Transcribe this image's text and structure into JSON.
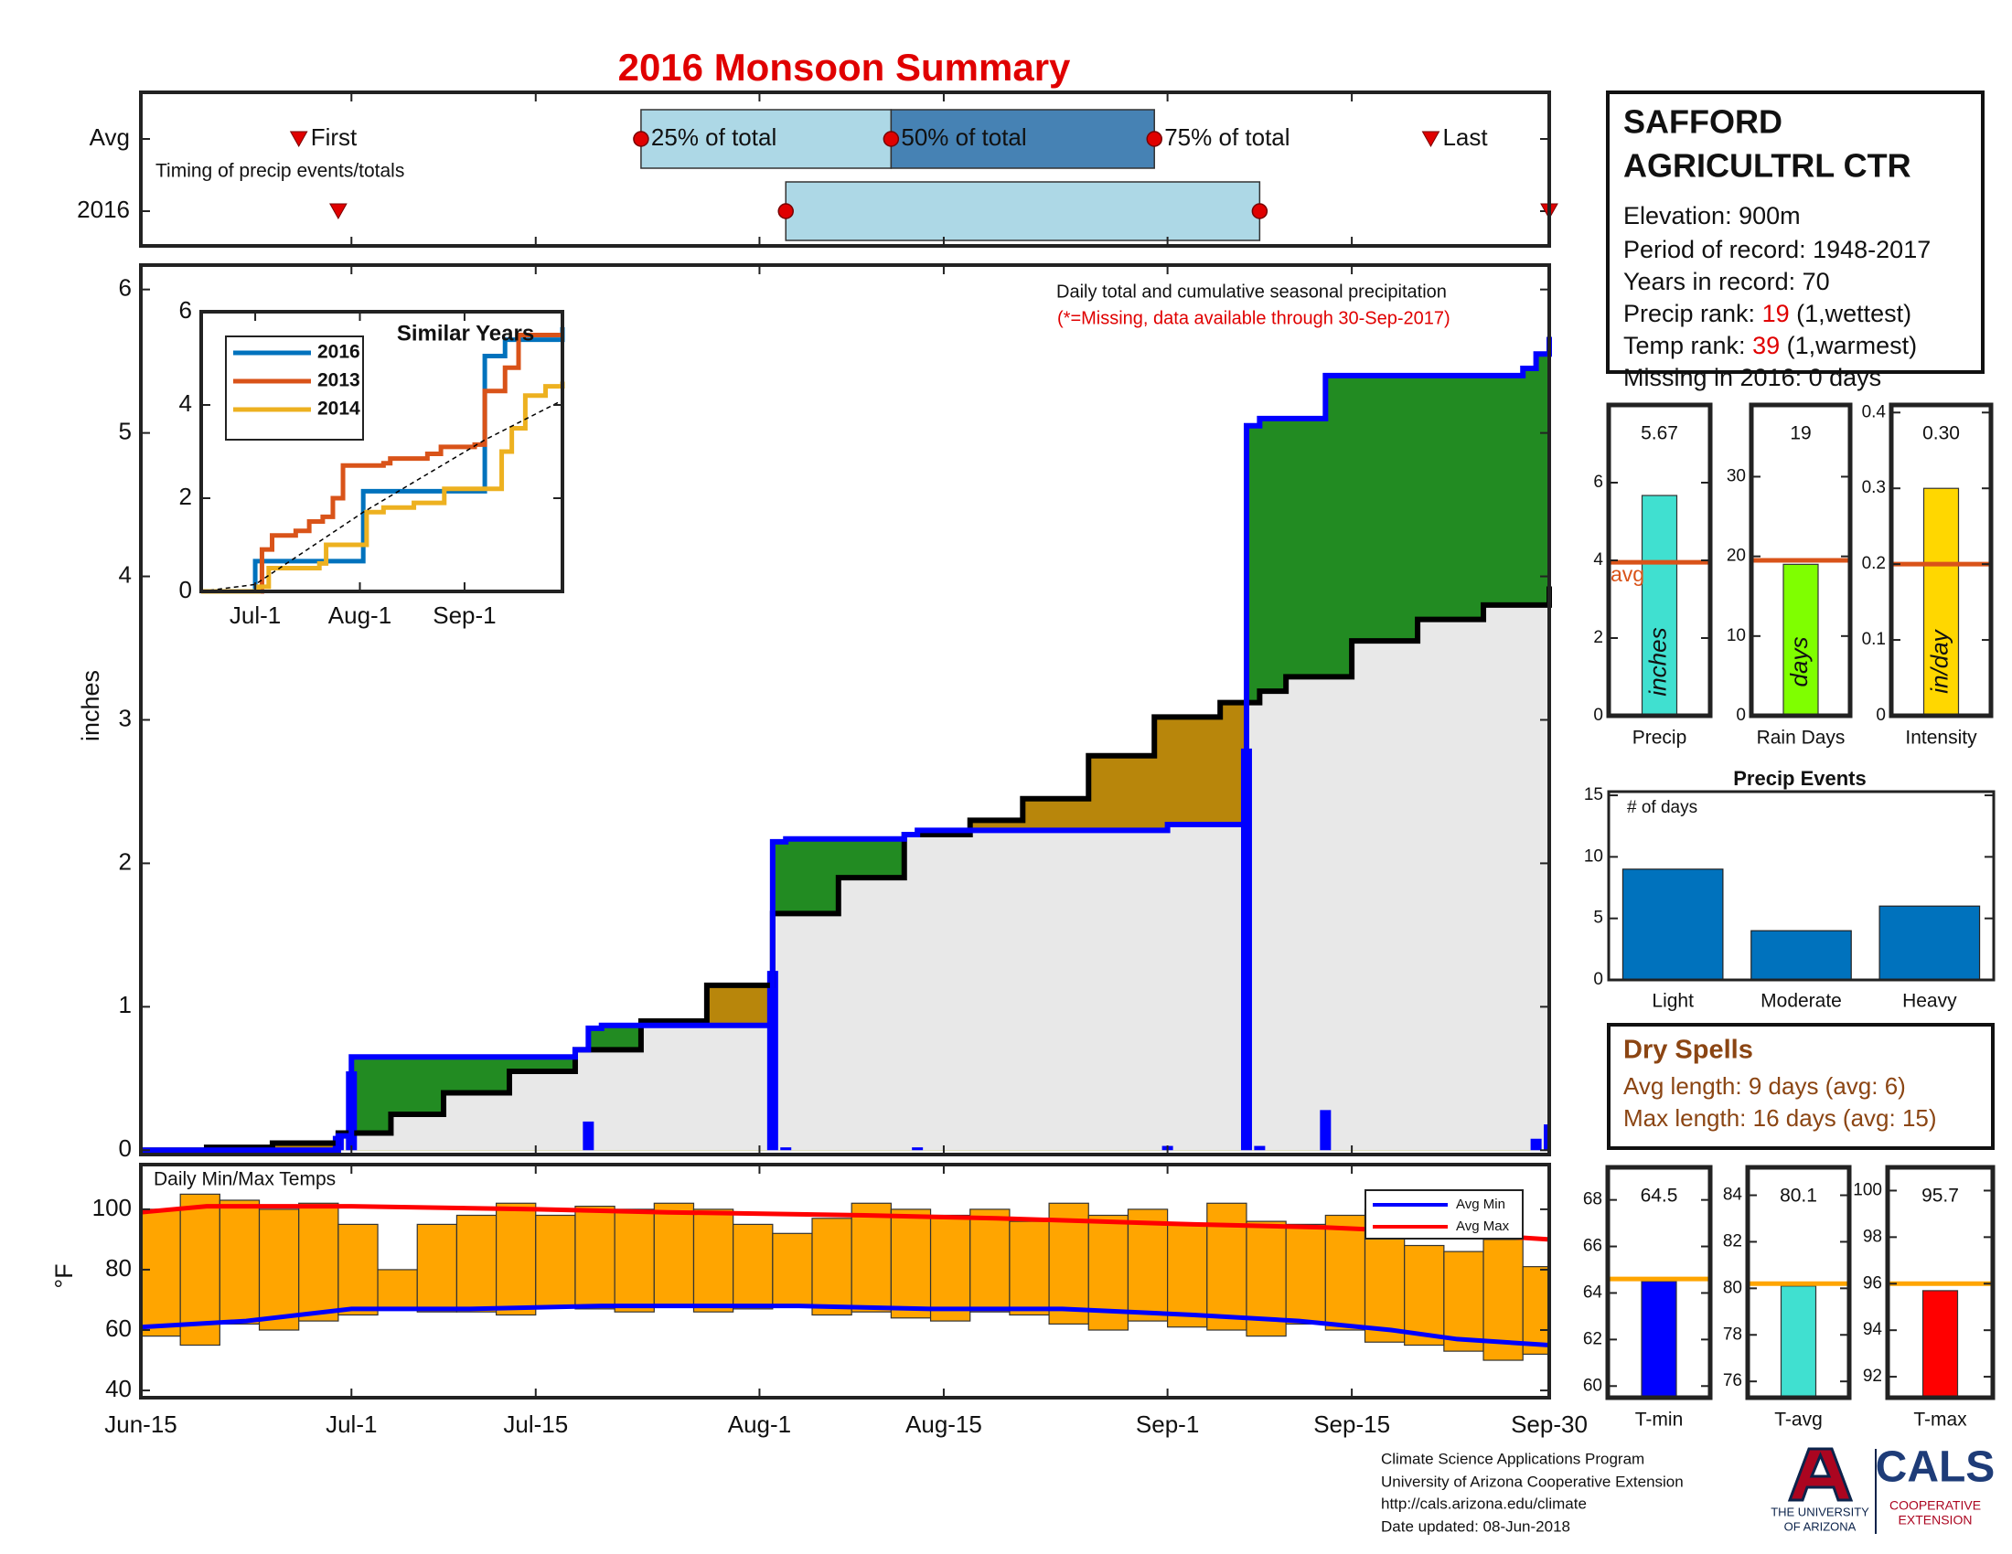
{
  "title": "2016 Monsoon Summary",
  "station": {
    "name_lines": [
      "SAFFORD",
      "AGRICULTRL CTR"
    ],
    "lines": [
      "Elevation: 900m",
      "Period of record: 1948-2017",
      "Years in record: 70"
    ],
    "precip_rank": {
      "label": "Precip rank:",
      "rank": 19,
      "note": "(1,wettest)"
    },
    "temp_rank": {
      "label": "Temp rank:",
      "rank": 39,
      "note": "(1,warmest)"
    },
    "missing": "Missing in 2016: 0 days"
  },
  "dry_spells": {
    "title": "Dry Spells",
    "lines": [
      "Avg length: 9 days (avg: 6)",
      "Max length: 16 days (avg: 15)"
    ]
  },
  "footer": {
    "lines": [
      "Climate Science Applications Program",
      "University of Arizona Cooperative Extension",
      "http://cals.arizona.edu/climate",
      " Date updated: 08-Jun-2018"
    ]
  },
  "logo": {
    "university": [
      "THE UNIVERSITY",
      "OF ARIZONA"
    ],
    "cals": "CALS",
    "extension": [
      "COOPERATIVE",
      "EXTENSION"
    ]
  },
  "chart_data": [
    {
      "type": "timing",
      "xlim": [
        0,
        107
      ],
      "note": "Timing of precip events/totals",
      "labels": {
        "first": "First",
        "q25": "25% of total",
        "q50": "50% of total",
        "q75": "75% of total",
        "last": "Last"
      },
      "colors": {
        "lower": "#add8e6",
        "upper": "#4682b4",
        "marker": "#e00000"
      },
      "rows": [
        {
          "name": "Avg",
          "first": 12,
          "q25": 38,
          "q50": 57,
          "q75": 77,
          "last": 98
        },
        {
          "name": "2016",
          "first": 15,
          "q25": 49,
          "q75": 85,
          "last": 107
        }
      ]
    },
    {
      "type": "precip",
      "annotations": [
        "Daily total and cumulative seasonal precipitation",
        "(*=Missing, data available through 30-Sep-2017)"
      ],
      "ylabel": "inches",
      "xlim": [
        0,
        107
      ],
      "ylim": [
        -0.03,
        6.17
      ],
      "yticks": [
        0,
        1,
        2,
        3,
        4,
        5,
        6
      ],
      "fill_colors": {
        "above": "#228b22",
        "below": "#b8860b",
        "base": "#e8e8e8"
      },
      "series": [
        {
          "color": "#000000",
          "x": [
            0,
            5,
            10,
            15,
            19,
            23,
            28,
            33,
            38,
            43,
            48,
            53,
            58,
            63,
            67,
            72,
            77,
            82,
            85,
            87,
            92,
            97,
            102,
            107
          ],
          "values": [
            0,
            0.02,
            0.05,
            0.12,
            0.25,
            0.4,
            0.55,
            0.7,
            0.9,
            1.15,
            1.65,
            1.9,
            2.2,
            2.3,
            2.45,
            2.75,
            3.02,
            3.12,
            3.2,
            3.3,
            3.55,
            3.7,
            3.8,
            3.93
          ]
        },
        {
          "color": "#0000ff",
          "x": [
            0,
            15,
            16,
            33,
            34,
            35,
            48,
            49,
            58,
            59,
            78,
            84,
            85,
            90,
            105,
            106,
            107
          ],
          "values": [
            0,
            0.1,
            0.65,
            0.7,
            0.85,
            0.87,
            2.15,
            2.17,
            2.2,
            2.23,
            2.27,
            5.05,
            5.1,
            5.4,
            5.45,
            5.55,
            5.67
          ]
        }
      ],
      "daily": {
        "color": "#0000ff",
        "x": [
          15,
          16,
          34,
          48,
          49,
          59,
          78,
          84,
          85,
          90,
          106,
          107
        ],
        "values": [
          0.1,
          0.55,
          0.2,
          1.25,
          0.02,
          0.02,
          0.03,
          2.8,
          0.03,
          0.28,
          0.08,
          0.18
        ]
      }
    },
    {
      "type": "line",
      "title": "Similar Years",
      "xlim": [
        0,
        107
      ],
      "ylim": [
        0,
        6
      ],
      "yticks": [
        0,
        2,
        4,
        6
      ],
      "xticks": [
        {
          "value": 16,
          "label": "Jul-1"
        },
        {
          "value": 47,
          "label": "Aug-1"
        },
        {
          "value": 78,
          "label": "Sep-1"
        }
      ],
      "series": [
        {
          "name": "2016",
          "color": "#0072bd",
          "x": [
            0,
            16,
            48,
            84,
            90,
            107
          ],
          "values": [
            0,
            0.65,
            2.15,
            5.05,
            5.4,
            5.67
          ]
        },
        {
          "name": "2013",
          "color": "#d95319",
          "x": [
            0,
            18,
            21,
            28,
            32,
            36,
            39,
            42,
            54,
            56,
            67,
            71,
            81,
            84,
            90,
            94,
            107
          ],
          "values": [
            0,
            0.9,
            1.2,
            1.3,
            1.5,
            1.6,
            2.0,
            2.7,
            2.75,
            2.85,
            2.95,
            3.1,
            3.15,
            4.3,
            4.8,
            5.5,
            5.5
          ]
        },
        {
          "name": "2014",
          "color": "#edb120",
          "x": [
            0,
            17,
            20,
            35,
            37,
            49,
            54,
            63,
            72,
            86,
            89,
            92,
            96,
            102,
            107
          ],
          "values": [
            0,
            0.1,
            0.5,
            0.6,
            1.0,
            1.7,
            1.8,
            1.9,
            2.2,
            2.2,
            3.0,
            3.5,
            4.2,
            4.4,
            4.5
          ]
        },
        {
          "color": "#000000",
          "dashed": true,
          "x": [
            0,
            16,
            48,
            84,
            107
          ],
          "values": [
            0,
            0.15,
            1.7,
            3.25,
            4.1
          ]
        }
      ]
    },
    {
      "type": "temps",
      "title": "Daily Min/Max Temps",
      "ylabel": "°F",
      "xlim": [
        0,
        107
      ],
      "ylim": [
        37.6,
        114.8
      ],
      "yticks": [
        40,
        60,
        80,
        100
      ],
      "xticks": [
        {
          "value": 0,
          "label": "Jun-15"
        },
        {
          "value": 16,
          "label": "Jul-1"
        },
        {
          "value": 30,
          "label": "Jul-15"
        },
        {
          "value": 47,
          "label": "Aug-1"
        },
        {
          "value": 61,
          "label": "Aug-15"
        },
        {
          "value": 78,
          "label": "Sep-1"
        },
        {
          "value": 92,
          "label": "Sep-15"
        },
        {
          "value": 107,
          "label": "Sep-30"
        }
      ],
      "color": "#ffa500",
      "x": [
        0,
        3,
        6,
        9,
        12,
        15,
        18,
        21,
        24,
        27,
        30,
        33,
        36,
        39,
        42,
        45,
        48,
        51,
        54,
        57,
        60,
        63,
        66,
        69,
        72,
        75,
        78,
        81,
        84,
        87,
        90,
        93,
        96,
        99,
        102,
        105
      ],
      "min": [
        58,
        55,
        62,
        60,
        63,
        65,
        67,
        66,
        66,
        65,
        68,
        67,
        66,
        68,
        66,
        67,
        68,
        65,
        66,
        64,
        63,
        66,
        65,
        62,
        60,
        63,
        61,
        60,
        58,
        62,
        60,
        56,
        55,
        53,
        50,
        52
      ],
      "max": [
        100,
        105,
        103,
        100,
        102,
        95,
        80,
        95,
        98,
        102,
        98,
        101,
        100,
        102,
        100,
        95,
        92,
        97,
        102,
        100,
        98,
        100,
        96,
        102,
        98,
        100,
        95,
        102,
        96,
        95,
        98,
        100,
        88,
        86,
        90,
        81
      ],
      "series": [
        {
          "name": "Avg Min",
          "color": "#0000ff",
          "x": [
            0,
            8,
            16,
            25,
            35,
            50,
            60,
            70,
            80,
            88,
            95,
            100,
            107
          ],
          "values": [
            61,
            63,
            67,
            67,
            68,
            68,
            67,
            67,
            65,
            63,
            60,
            57,
            55
          ]
        },
        {
          "name": "Avg Max",
          "color": "#ff0000",
          "x": [
            0,
            5,
            16,
            30,
            40,
            55,
            65,
            80,
            90,
            100,
            107
          ],
          "values": [
            99,
            101,
            101,
            100,
            99,
            98,
            97,
            95,
            94,
            92,
            90
          ]
        }
      ]
    },
    {
      "type": "summary",
      "categories": [
        "Precip"
      ],
      "values": [
        5.67
      ],
      "avg": 3.95,
      "avg_label": "avg",
      "unit": "inches",
      "color": "#40e0d0",
      "avg_color": "#d95319",
      "ylim": [
        0,
        8
      ],
      "yticks": [
        0,
        2,
        4,
        6
      ]
    },
    {
      "type": "summary",
      "categories": [
        "Rain Days"
      ],
      "values": [
        19
      ],
      "avg": 19.5,
      "unit": "days",
      "color": "#7fff00",
      "avg_color": "#d95319",
      "ylim": [
        0,
        39
      ],
      "yticks": [
        0,
        10,
        20,
        30
      ]
    },
    {
      "type": "summary",
      "categories": [
        "Intensity"
      ],
      "values": [
        0.3
      ],
      "value_labels": [
        "0.30"
      ],
      "avg": 0.2,
      "unit": "in/day",
      "color": "#ffd700",
      "avg_color": "#d95319",
      "ylim": [
        0,
        0.41
      ],
      "yticks": [
        0,
        0.1,
        0.2,
        0.3,
        0.4
      ]
    },
    {
      "type": "bar",
      "title": "Precip Events",
      "annotation": "# of days",
      "categories": [
        "Light",
        "Moderate",
        "Heavy"
      ],
      "values": [
        9,
        4,
        6
      ],
      "color": "#0072bd",
      "ylim": [
        0,
        15.3
      ],
      "yticks": [
        0,
        5,
        10,
        15
      ]
    },
    {
      "type": "summary",
      "categories": [
        "T-min"
      ],
      "values": [
        64.5
      ],
      "avg": 64.6,
      "color": "#0000ff",
      "avg_color": "#ffa500",
      "ylim": [
        59.5,
        69.4
      ],
      "yticks": [
        60,
        62,
        64,
        66,
        68
      ]
    },
    {
      "type": "summary",
      "categories": [
        "T-avg"
      ],
      "values": [
        80.1
      ],
      "avg": 80.2,
      "color": "#40e0d0",
      "avg_color": "#ffa500",
      "ylim": [
        75.3,
        85.2
      ],
      "yticks": [
        76,
        78,
        80,
        82,
        84
      ]
    },
    {
      "type": "summary",
      "categories": [
        "T-max"
      ],
      "values": [
        95.7
      ],
      "avg": 96,
      "color": "#ff0000",
      "avg_color": "#ffa500",
      "ylim": [
        91.1,
        101
      ],
      "yticks": [
        92,
        94,
        96,
        98,
        100
      ]
    }
  ]
}
